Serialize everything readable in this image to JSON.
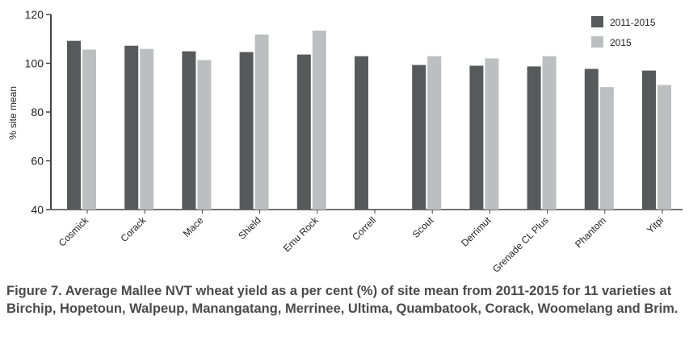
{
  "chart_data": {
    "type": "bar",
    "ylabel": "% site mean",
    "ylim": [
      40,
      120
    ],
    "yticks": [
      40,
      60,
      80,
      100,
      120
    ],
    "legend_placement": "top-right",
    "categories": [
      "Cosmick",
      "Corack",
      "Mace",
      "Shield",
      "Emu Rock",
      "Correll",
      "Scout",
      "Derrimut",
      "Grenade CL Plus",
      "Phantom",
      "Yitpi"
    ],
    "series": [
      {
        "name": "2011-2015",
        "color": "#58595b",
        "values": [
          109.2,
          107.2,
          104.9,
          104.6,
          103.6,
          102.9,
          99.3,
          99.0,
          98.7,
          97.7,
          97.0
        ]
      },
      {
        "name": "2015",
        "color": "#bcbec0",
        "values": [
          105.6,
          105.9,
          101.3,
          111.8,
          113.4,
          null,
          102.9,
          102.0,
          102.9,
          90.2,
          91.1
        ]
      }
    ]
  },
  "caption": "Figure 7. Average Mallee NVT wheat yield as a per cent (%) of site mean from 2011-2015 for 11 varieties at Birchip, Hopetoun, Walpeup, Manangatang, Merrinee, Ultima, Quambatook, Corack, Woomelang and Brim."
}
